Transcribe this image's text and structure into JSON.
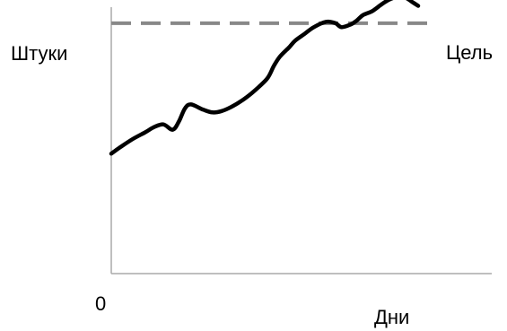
{
  "chart_data": {
    "type": "line",
    "xlabel": "Дни",
    "ylabel": "Штуки",
    "origin_label": "0",
    "xlim": [
      0,
      100
    ],
    "ylim": [
      0,
      100
    ],
    "grid": false,
    "legend": "none",
    "series": [
      {
        "x": [
          0,
          3,
          7,
          11,
          14,
          17,
          20,
          22,
          24,
          26,
          30,
          33,
          36,
          39,
          42,
          45,
          48,
          51,
          53,
          55,
          58,
          60,
          63,
          66,
          70,
          73,
          75,
          78,
          80,
          82,
          85,
          88,
          90,
          92,
          94,
          96,
          98,
          100
        ],
        "y": [
          45,
          47.5,
          50.5,
          53,
          55,
          56,
          54,
          57,
          62,
          63.5,
          61.5,
          60.5,
          61,
          62.5,
          64.5,
          67,
          70,
          73.5,
          78,
          81.5,
          85,
          87.5,
          90,
          92.5,
          94.5,
          94,
          92.5,
          93.5,
          95,
          97,
          98.5,
          101,
          102.5,
          103.5,
          104,
          103.5,
          102,
          100.5
        ],
        "color": "#000000"
      }
    ],
    "reference_lines": [
      {
        "axis": "y",
        "value": 94,
        "label": "Цель",
        "style": "dashed",
        "color": "#888888"
      }
    ]
  }
}
